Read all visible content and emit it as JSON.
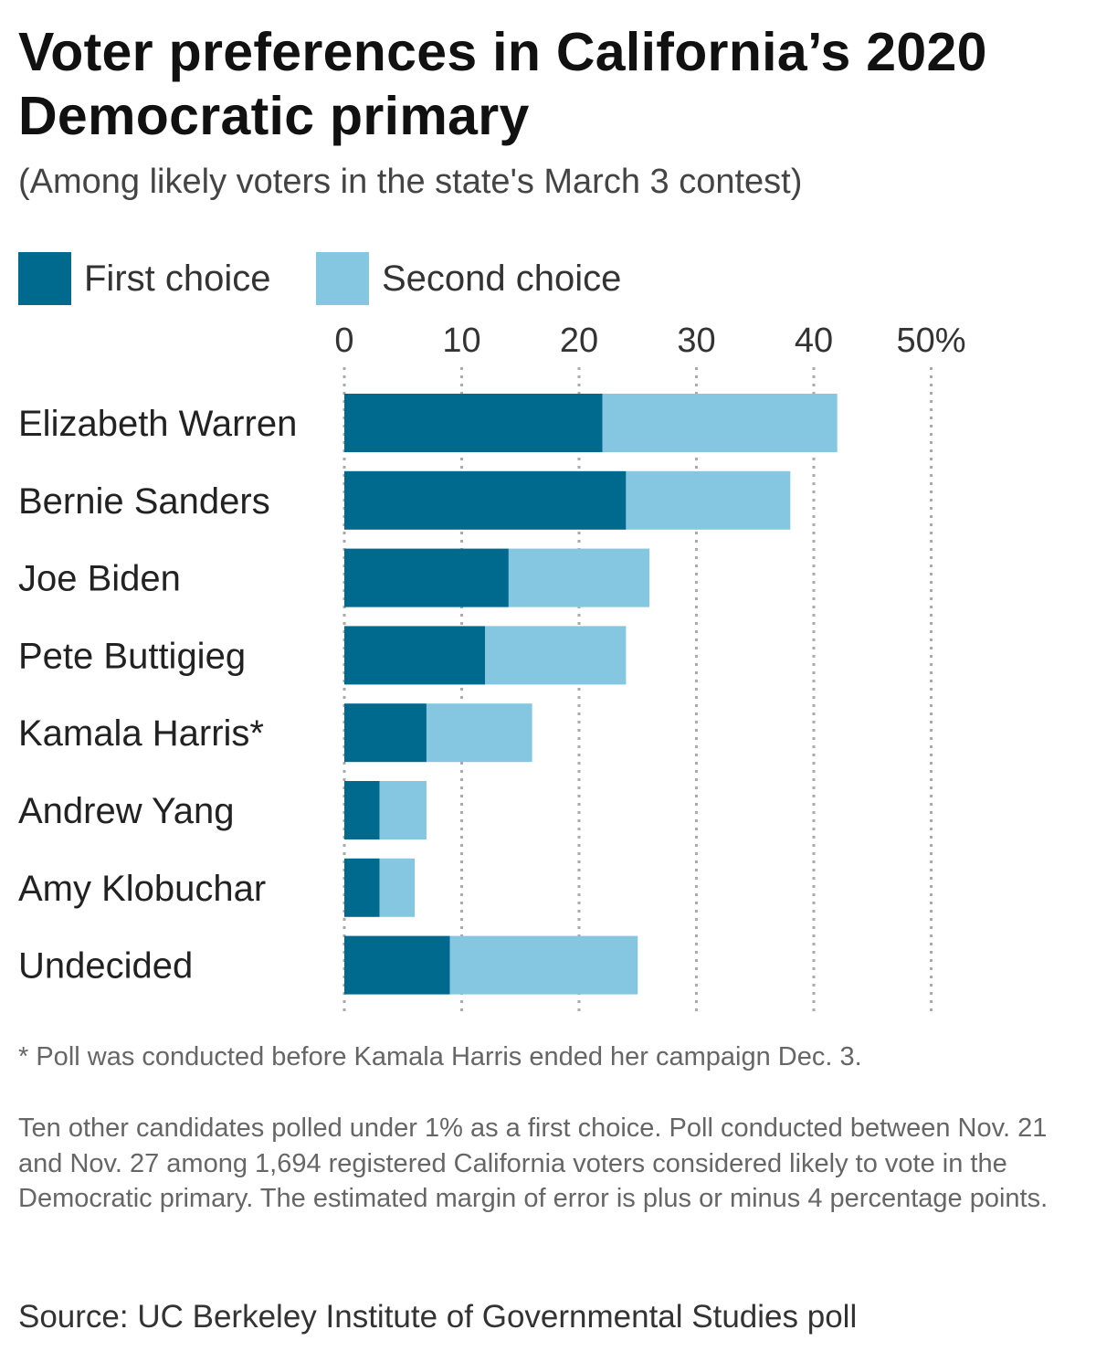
{
  "header": {
    "title": "Voter preferences in California’s 2020 Democratic primary",
    "subtitle": "(Among likely voters in the state's March 3 contest)"
  },
  "legend": {
    "first_label": "First choice",
    "second_label": "Second choice"
  },
  "colors": {
    "first": "#006a8e",
    "second": "#85c6e0",
    "grid": "#aaaaaa"
  },
  "chart_data": {
    "type": "bar",
    "orientation": "horizontal",
    "stacked": true,
    "categories": [
      "Elizabeth Warren",
      "Bernie Sanders",
      "Joe Biden",
      "Pete Buttigieg",
      "Kamala Harris*",
      "Andrew Yang",
      "Amy Klobuchar",
      "Undecided"
    ],
    "series": [
      {
        "name": "First choice",
        "values": [
          22,
          24,
          14,
          12,
          7,
          3,
          3,
          9
        ]
      },
      {
        "name": "Second choice",
        "values": [
          20,
          14,
          12,
          12,
          9,
          4,
          3,
          16
        ]
      }
    ],
    "xlim": [
      0,
      50
    ],
    "x_ticks": [
      0,
      10,
      20,
      30,
      40,
      50
    ],
    "x_tick_labels": [
      "0",
      "10",
      "20",
      "30",
      "40",
      "50%"
    ],
    "grid": true,
    "legend_position": "top-left"
  },
  "footer": {
    "footnote": "* Poll was conducted before Kamala Harris ended her campaign Dec. 3.",
    "note": "Ten other candidates polled under 1% as a first choice. Poll conducted between Nov. 21 and Nov. 27 among 1,694 registered California voters considered likely to vote in the Democratic primary. The estimated margin of error is plus or minus 4 percentage points.",
    "source": "Source: UC Berkeley Institute of Governmental Studies poll"
  }
}
